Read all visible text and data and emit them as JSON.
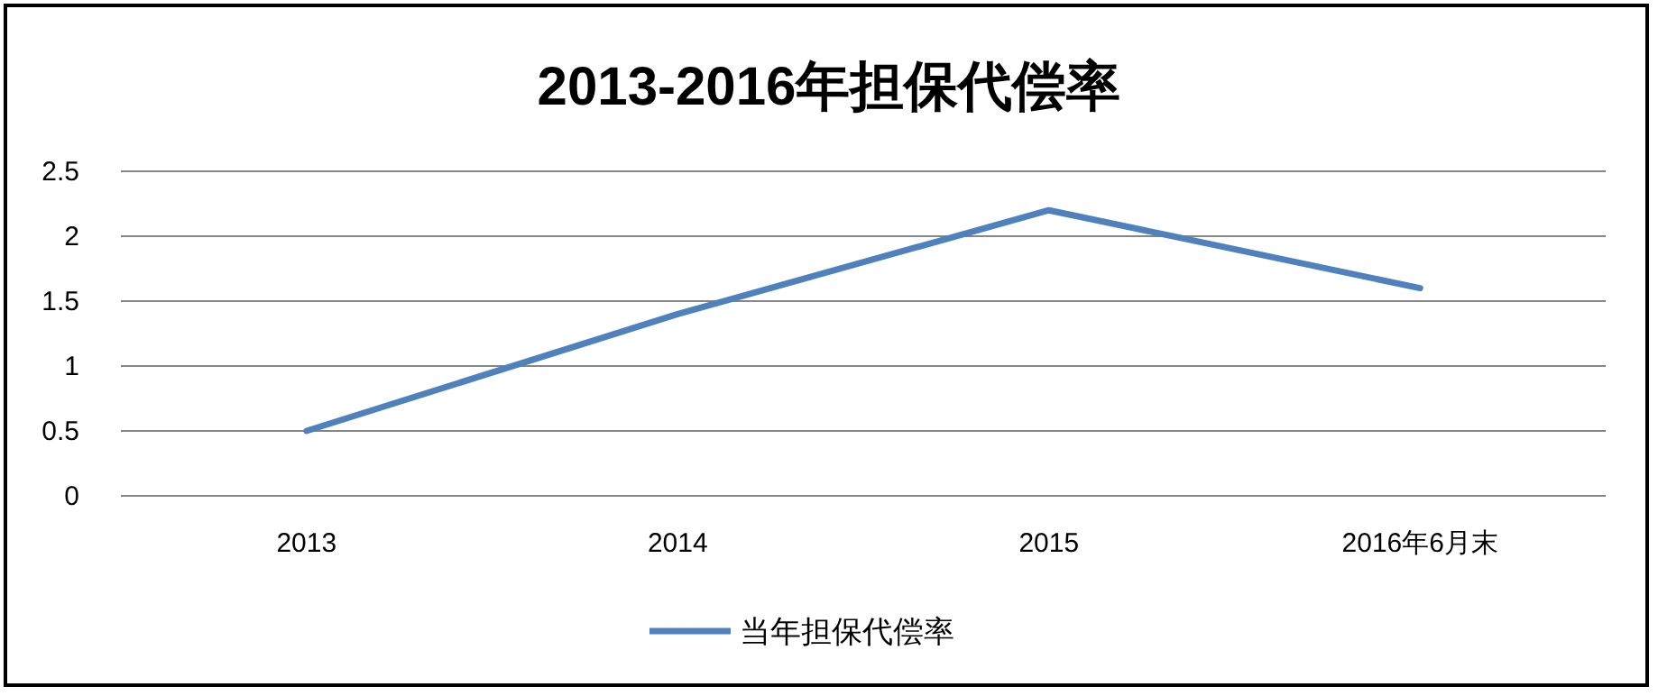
{
  "chart_data": {
    "type": "line",
    "title": "2013-2016年担保代偿率",
    "categories": [
      "2013",
      "2014",
      "2015",
      "2016年6月末"
    ],
    "series": [
      {
        "name": "当年担保代偿率",
        "color": "#4f81bd",
        "values": [
          0.5,
          1.4,
          2.2,
          1.6
        ]
      }
    ],
    "ylim": [
      0,
      2.5
    ],
    "yticks": [
      0,
      0.5,
      1,
      1.5,
      2,
      2.5
    ],
    "grid": "y",
    "legend": "bottom",
    "marker": "none",
    "line_style": "solid"
  }
}
